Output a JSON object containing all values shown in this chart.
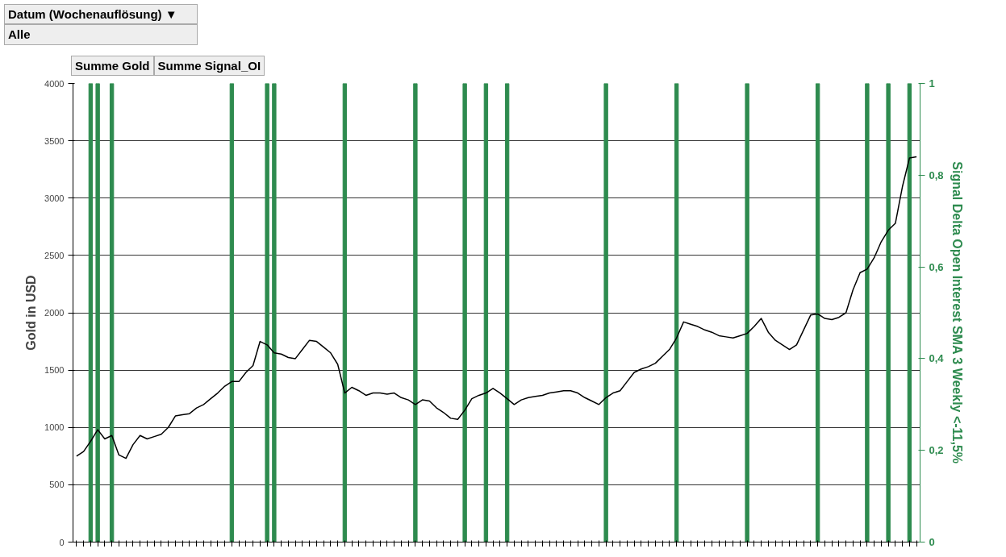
{
  "chart_data": {
    "type": "line",
    "categories": [
      null,
      null,
      null,
      null,
      null,
      null,
      null,
      null,
      null,
      null,
      null,
      null,
      null,
      null,
      null,
      null,
      null,
      null,
      null,
      null,
      null,
      null,
      null,
      null,
      null,
      null,
      null,
      null,
      null,
      null,
      null,
      null,
      null,
      null,
      null,
      null,
      null,
      null,
      null,
      null,
      null,
      null,
      null,
      null,
      null,
      null,
      null,
      null,
      null,
      null,
      null,
      null,
      null,
      null,
      null,
      null,
      null,
      null,
      null,
      null,
      null,
      null,
      null,
      null,
      null,
      null,
      null,
      null,
      null,
      null,
      null,
      null,
      null,
      null,
      null,
      null,
      null,
      null,
      null,
      null,
      null,
      null,
      null,
      null,
      null,
      null,
      null,
      null,
      null,
      null,
      null,
      null,
      null,
      null,
      null,
      null,
      null,
      null,
      null,
      null,
      null,
      null,
      null,
      null,
      null,
      null,
      null,
      null,
      null,
      null,
      null,
      null,
      null,
      null,
      null,
      null,
      null,
      null,
      null,
      null
    ],
    "series": [
      {
        "type": "bar",
        "axis": "y2",
        "color": "#2e8b4f",
        "values": [
          null,
          null,
          1,
          1,
          null,
          1,
          null,
          null,
          null,
          null,
          null,
          null,
          null,
          null,
          null,
          null,
          null,
          null,
          null,
          null,
          null,
          null,
          1,
          null,
          null,
          null,
          null,
          1,
          1,
          null,
          null,
          null,
          null,
          null,
          null,
          null,
          null,
          null,
          1,
          null,
          null,
          null,
          null,
          null,
          null,
          null,
          null,
          null,
          1,
          null,
          null,
          null,
          null,
          null,
          null,
          1,
          null,
          null,
          1,
          null,
          null,
          1,
          null,
          null,
          null,
          null,
          null,
          null,
          null,
          null,
          null,
          null,
          null,
          null,
          null,
          1,
          null,
          null,
          null,
          null,
          null,
          null,
          null,
          null,
          null,
          1,
          null,
          null,
          null,
          null,
          null,
          null,
          null,
          null,
          null,
          1,
          null,
          null,
          null,
          null,
          null,
          null,
          null,
          null,
          null,
          1,
          null,
          null,
          null,
          null,
          null,
          null,
          1,
          null,
          null,
          1,
          null,
          null,
          1,
          null
        ]
      },
      {
        "color": "#000000",
        "values": [
          750,
          790,
          880,
          980,
          900,
          930,
          760,
          730,
          850,
          930,
          900,
          920,
          940,
          1000,
          1100,
          1110,
          1120,
          1170,
          1200,
          1250,
          1300,
          1360,
          1400,
          1400,
          1480,
          1540,
          1750,
          1720,
          1650,
          1640,
          1610,
          1600,
          1680,
          1760,
          1750,
          1700,
          1650,
          1550,
          1300,
          1350,
          1320,
          1280,
          1300,
          1300,
          1290,
          1300,
          1260,
          1240,
          1200,
          1240,
          1230,
          1170,
          1130,
          1080,
          1070,
          1150,
          1250,
          1280,
          1300,
          1340,
          1300,
          1250,
          1200,
          1240,
          1260,
          1270,
          1280,
          1300,
          1310,
          1320,
          1320,
          1300,
          1260,
          1230,
          1200,
          1260,
          1300,
          1320,
          1400,
          1480,
          1510,
          1530,
          1560,
          1620,
          1680,
          1780,
          1920,
          1900,
          1880,
          1850,
          1830,
          1800,
          1790,
          1780,
          1800,
          1820,
          1880,
          1950,
          1830,
          1760,
          1720,
          1680,
          1720,
          1850,
          1980,
          1990,
          1950,
          1940,
          1960,
          2000,
          2200,
          2350,
          2380,
          2480,
          2620,
          2720,
          2780,
          3100,
          3350,
          3360
        ]
      }
    ],
    "ylabel": "Gold in USD",
    "y2label": "Signal Delta Open Interest SMA 3 Weekly <-11,5%",
    "ylim": [
      0,
      4000
    ],
    "yticks": [
      0,
      500,
      1000,
      1500,
      2000,
      2500,
      3000,
      3500,
      4000
    ],
    "y2lim": [
      0,
      1
    ],
    "y2ticks": [
      0,
      {
        "value": 0.2,
        "label": "0,2"
      },
      {
        "value": 0.4,
        "label": "0,4"
      },
      {
        "value": 0.6,
        "label": "0,6"
      },
      {
        "value": 0.8,
        "label": "0,8"
      },
      1
    ],
    "grid": "y",
    "annotations": [
      "Datum (Wochenauflösung) ▼",
      "Alle",
      "Summe Gold",
      "Summe Signal_OI"
    ]
  }
}
